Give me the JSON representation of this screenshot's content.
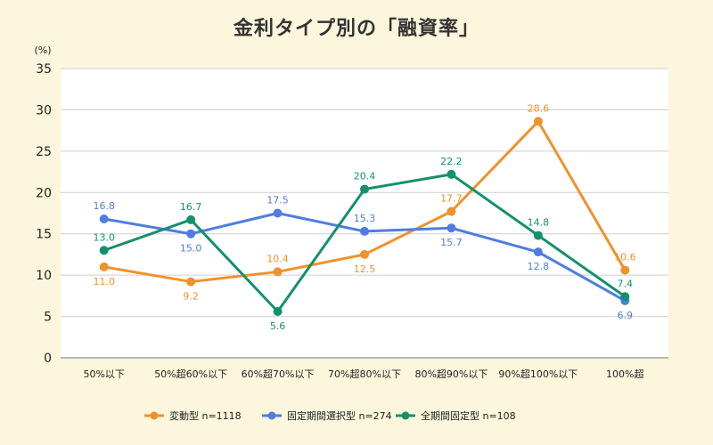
{
  "chart_data": {
    "type": "line",
    "title": "金利タイプ別の「融資率」",
    "ylabel": "(%)",
    "xlabel": "",
    "ylim": [
      0,
      35
    ],
    "yticks": [
      0,
      5,
      10,
      15,
      20,
      25,
      30,
      35
    ],
    "grid": "horizontal",
    "legend_position": "bottom",
    "categories": [
      "50%以下",
      "50%超60%以下",
      "60%超70%以下",
      "70%超80%以下",
      "80%超90%以下",
      "90%超100%以下",
      "100%超"
    ],
    "series": [
      {
        "name": "変動型 n=1118",
        "color": "#f0922b",
        "values": [
          11.0,
          9.2,
          10.4,
          12.5,
          17.7,
          28.6,
          10.6
        ],
        "labels": [
          "11.0",
          "9.2",
          "10.4",
          "12.5",
          "17.7",
          "28.6",
          "10.6"
        ],
        "label_pos": [
          "below",
          "below",
          "above",
          "below",
          "above",
          "above",
          "above"
        ]
      },
      {
        "name": "固定期間選択型 n=274",
        "color": "#4f7de0",
        "values": [
          16.8,
          15.0,
          17.5,
          15.3,
          15.7,
          12.8,
          6.9
        ],
        "labels": [
          "16.8",
          "15.0",
          "17.5",
          "15.3",
          "15.7",
          "12.8",
          "6.9"
        ],
        "label_pos": [
          "above",
          "below",
          "above",
          "above",
          "below",
          "below",
          "below"
        ]
      },
      {
        "name": "全期間固定型 n=108",
        "color": "#14906e",
        "values": [
          13.0,
          16.7,
          5.6,
          20.4,
          22.2,
          14.8,
          7.4
        ],
        "labels": [
          "13.0",
          "16.7",
          "5.6",
          "20.4",
          "22.2",
          "14.8",
          "7.4"
        ],
        "label_pos": [
          "above",
          "above",
          "below",
          "above",
          "above",
          "above",
          "above"
        ]
      }
    ]
  }
}
